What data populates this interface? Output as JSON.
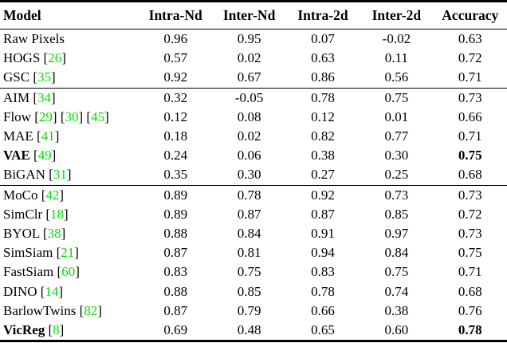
{
  "colors": {
    "citation_green": "#00e000",
    "text": "#000000",
    "rule": "#000000",
    "background": "#ffffff"
  },
  "table": {
    "headers": [
      "Model",
      "Intra-Nd",
      "Inter-Nd",
      "Intra-2d",
      "Inter-2d",
      "Accuracy"
    ],
    "groups": [
      {
        "rows": [
          {
            "model": "Raw Pixels",
            "bold_model": false,
            "citations": [],
            "values": [
              "0.96",
              "0.95",
              "0.07",
              "-0.02",
              "0.63"
            ],
            "bold_accuracy": false
          },
          {
            "model": "HOGS",
            "bold_model": false,
            "citations": [
              "26"
            ],
            "values": [
              "0.57",
              "0.02",
              "0.63",
              "0.11",
              "0.72"
            ],
            "bold_accuracy": false
          },
          {
            "model": "GSC",
            "bold_model": false,
            "citations": [
              "35"
            ],
            "values": [
              "0.92",
              "0.67",
              "0.86",
              "0.56",
              "0.71"
            ],
            "bold_accuracy": false
          }
        ]
      },
      {
        "rows": [
          {
            "model": "AIM",
            "bold_model": false,
            "citations": [
              "34"
            ],
            "values": [
              "0.32",
              "-0.05",
              "0.78",
              "0.75",
              "0.73"
            ],
            "bold_accuracy": false
          },
          {
            "model": "Flow",
            "bold_model": false,
            "citations": [
              "29",
              "30",
              "45"
            ],
            "values": [
              "0.12",
              "0.08",
              "0.12",
              "0.01",
              "0.66"
            ],
            "bold_accuracy": false
          },
          {
            "model": "MAE",
            "bold_model": false,
            "citations": [
              "41"
            ],
            "values": [
              "0.18",
              "0.02",
              "0.82",
              "0.77",
              "0.71"
            ],
            "bold_accuracy": false
          },
          {
            "model": "VAE",
            "bold_model": true,
            "citations": [
              "49"
            ],
            "values": [
              "0.24",
              "0.06",
              "0.38",
              "0.30",
              "0.75"
            ],
            "bold_accuracy": true
          },
          {
            "model": "BiGAN",
            "bold_model": false,
            "citations": [
              "31"
            ],
            "values": [
              "0.35",
              "0.30",
              "0.27",
              "0.25",
              "0.68"
            ],
            "bold_accuracy": false
          }
        ]
      },
      {
        "rows": [
          {
            "model": "MoCo",
            "bold_model": false,
            "citations": [
              "42"
            ],
            "values": [
              "0.89",
              "0.78",
              "0.92",
              "0.73",
              "0.73"
            ],
            "bold_accuracy": false
          },
          {
            "model": "SimClr",
            "bold_model": false,
            "citations": [
              "18"
            ],
            "values": [
              "0.89",
              "0.87",
              "0.87",
              "0.85",
              "0.72"
            ],
            "bold_accuracy": false
          },
          {
            "model": "BYOL",
            "bold_model": false,
            "citations": [
              "38"
            ],
            "values": [
              "0.88",
              "0.84",
              "0.91",
              "0.97",
              "0.73"
            ],
            "bold_accuracy": false
          },
          {
            "model": "SimSiam",
            "bold_model": false,
            "citations": [
              "21"
            ],
            "values": [
              "0.87",
              "0.81",
              "0.94",
              "0.84",
              "0.75"
            ],
            "bold_accuracy": false
          },
          {
            "model": "FastSiam",
            "bold_model": false,
            "citations": [
              "60"
            ],
            "values": [
              "0.83",
              "0.75",
              "0.83",
              "0.75",
              "0.71"
            ],
            "bold_accuracy": false
          },
          {
            "model": "DINO",
            "bold_model": false,
            "citations": [
              "14"
            ],
            "values": [
              "0.88",
              "0.85",
              "0.78",
              "0.74",
              "0.68"
            ],
            "bold_accuracy": false
          },
          {
            "model": "BarlowTwins",
            "bold_model": false,
            "citations": [
              "82"
            ],
            "values": [
              "0.87",
              "0.79",
              "0.66",
              "0.38",
              "0.76"
            ],
            "bold_accuracy": false
          },
          {
            "model": "VicReg",
            "bold_model": true,
            "citations": [
              "8"
            ],
            "values": [
              "0.69",
              "0.48",
              "0.65",
              "0.60",
              "0.78"
            ],
            "bold_accuracy": true
          }
        ]
      }
    ]
  }
}
